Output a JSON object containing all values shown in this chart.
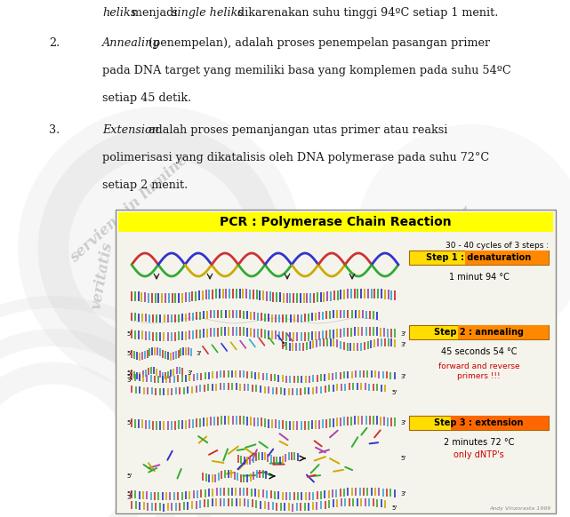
{
  "bg_color": "#ffffff",
  "body_font_size": 9.2,
  "body_font_family": "serif",
  "text_color": "#1a1a1a",
  "line1_italic1": "heliks",
  "line1_normal": " menjadi ",
  "line1_italic2": "single heliks",
  "line1_normal2": " dikarenakan suhu tinggi 94ºC setiap 1 menit.",
  "para2_num": "2.",
  "para2_italic": "Annealing",
  "para2_rest": " (penempelan), adalah proses penempelan pasangan primer",
  "para2_line2": "pada DNA target yang memiliki basa yang komplemen pada suhu 54ºC",
  "para2_line3": "setiap 45 detik.",
  "para3_num": "3.",
  "para3_italic": "Extension",
  "para3_rest": " adalah proses pemanjangan utas primer atau reaksi",
  "para3_line2": "polimerisasi yang dikatalisis oleh DNA polymerase pada suhu 72°C",
  "para3_line3": "setiap 2 menit.",
  "wm_text1": "serviens in lumine",
  "wm_text2": "veritatis",
  "pcr_title": "PCR : Polymerase Chain Reaction",
  "pcr_title_bg": "#ffff00",
  "cycles_text": "30 - 40 cycles of 3 steps :",
  "step1_label": "Step 1 : denaturation",
  "step1_bg_left": "#ffff00",
  "step1_bg_right": "#ff8c00",
  "step1_detail": "1 minut 94 °C",
  "step2_label": "Step 2 : annealing",
  "step2_bg_left": "#ffff00",
  "step2_bg_right": "#ff8c00",
  "step2_detail": "45 seconds 54 °C",
  "step2_extra": "forward and reverse\nprimers !!!",
  "step3_label": "Step 3 : extension",
  "step3_bg_left": "#ffff00",
  "step3_bg_right": "#ff6600",
  "step3_detail1": "2 minutes 72 °C",
  "step3_detail2": "only dNTP's",
  "caption": "Andy Vinzorasta 1999",
  "box_facecolor": "#f5f4ec",
  "box_edgecolor": "#888880",
  "dna_colors": [
    "#cc3333",
    "#33aa33",
    "#3333cc",
    "#ccaa00",
    "#aa44aa",
    "#33aacc"
  ],
  "nuc_colors": [
    "#cc3333",
    "#33aa33",
    "#3333cc",
    "#ccaa00",
    "#aa44aa"
  ]
}
